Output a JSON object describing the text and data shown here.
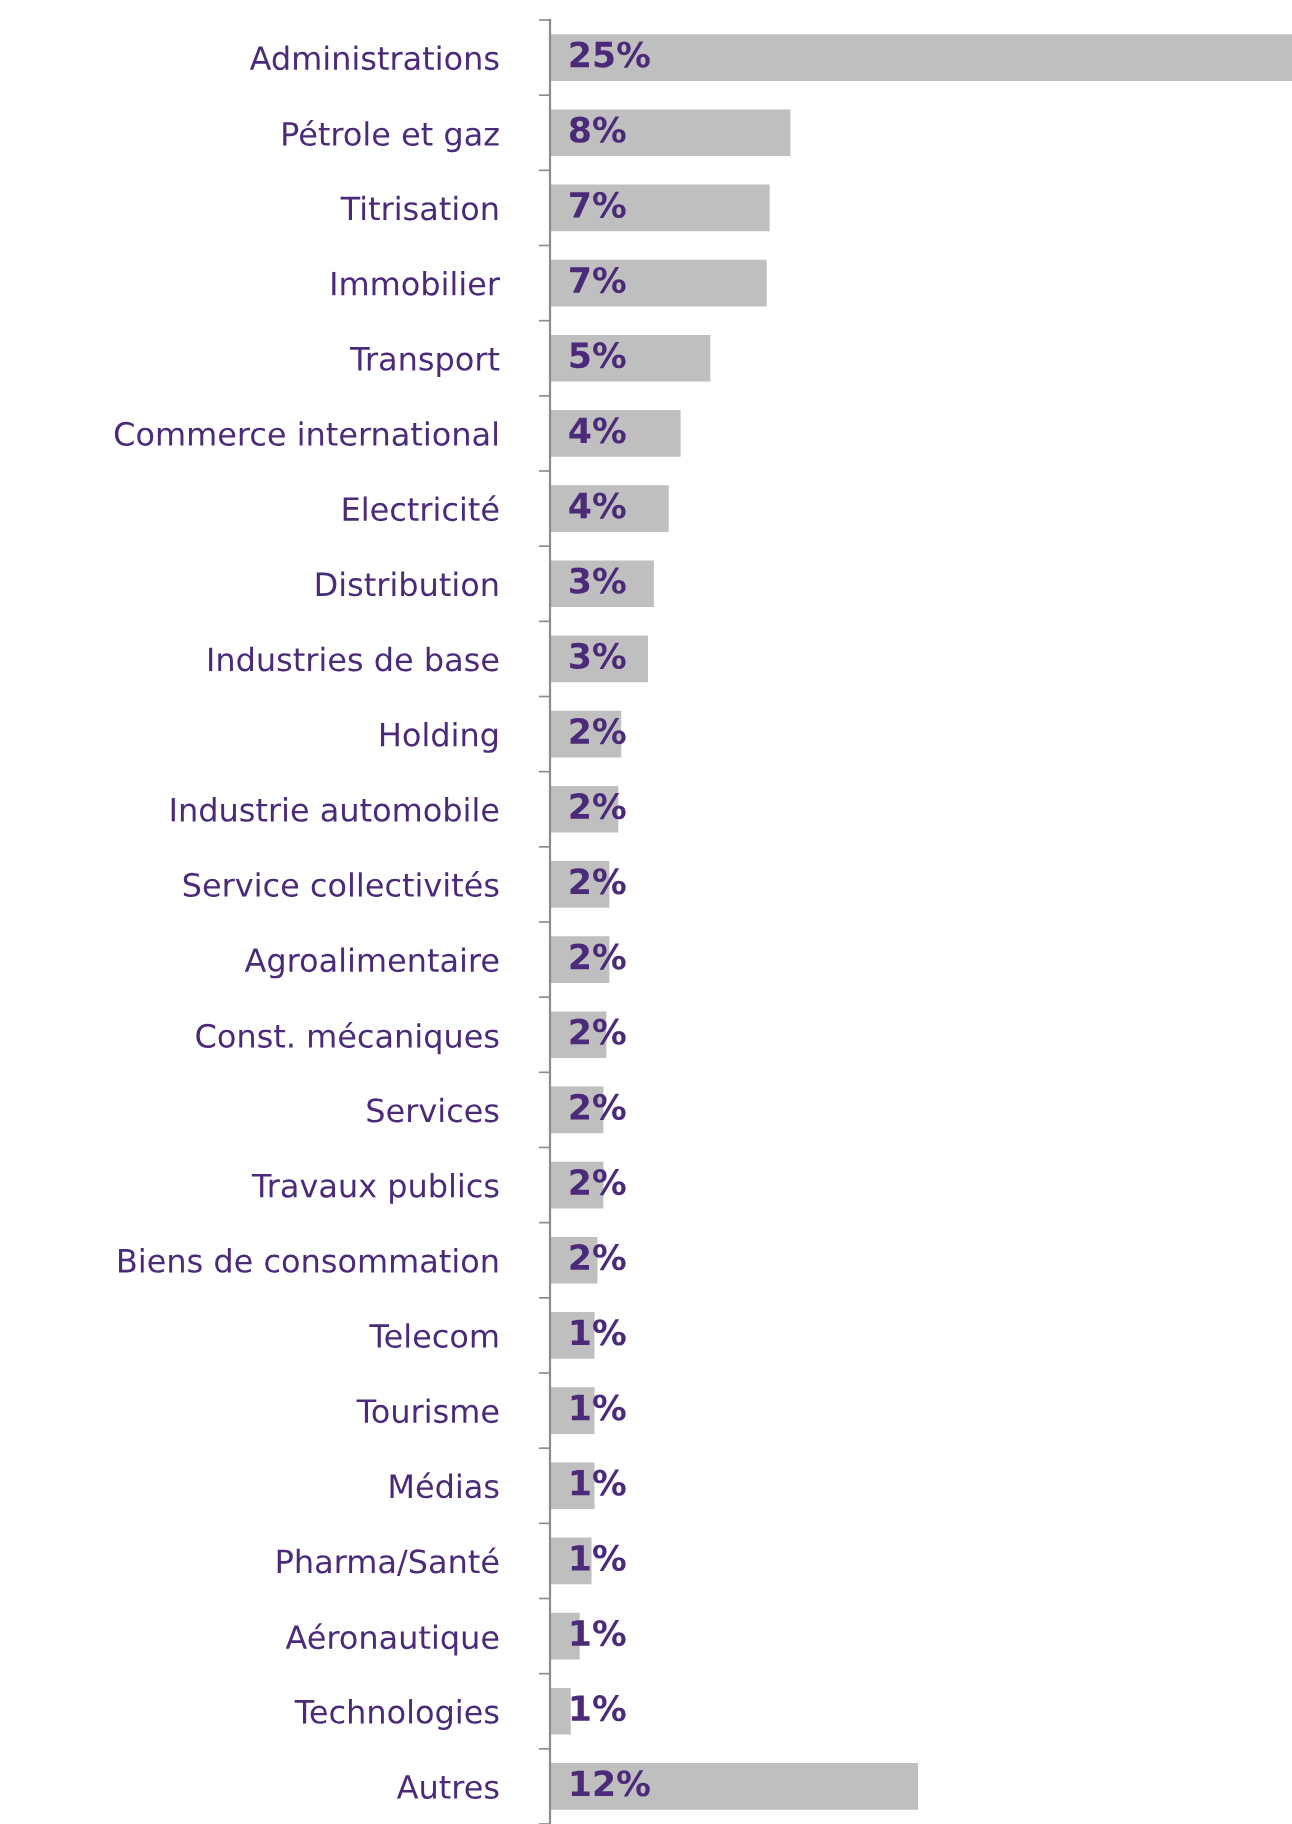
{
  "chart_data": {
    "type": "bar",
    "orientation": "horizontal",
    "categories": [
      "Administrations",
      "Pétrole et gaz",
      "Titrisation",
      "Immobilier",
      "Transport",
      "Commerce international",
      "Electricité",
      "Distribution",
      "Industries de base",
      "Holding",
      "Industrie automobile",
      "Service collectivités",
      "Agroalimentaire",
      "Const. mécaniques",
      "Services",
      "Travaux publics",
      "Biens de consommation",
      "Telecom",
      "Tourisme",
      "Médias",
      "Pharma/Santé",
      "Aéronautique",
      "Technologies",
      "Autres"
    ],
    "values": [
      25,
      8.1,
      7.4,
      7.3,
      5.4,
      4.4,
      4.0,
      3.5,
      3.3,
      2.4,
      2.3,
      2.0,
      2.0,
      1.9,
      1.8,
      1.8,
      1.6,
      1.5,
      1.5,
      1.5,
      1.4,
      1.0,
      0.7,
      12.4
    ],
    "value_labels": [
      "25%",
      "8%",
      "7%",
      "7%",
      "5%",
      "4%",
      "4%",
      "3%",
      "3%",
      "2%",
      "2%",
      "2%",
      "2%",
      "2%",
      "2%",
      "2%",
      "2%",
      "1%",
      "1%",
      "1%",
      "1%",
      "1%",
      "1%",
      "12%"
    ],
    "color": "#bfbfbf"
  }
}
